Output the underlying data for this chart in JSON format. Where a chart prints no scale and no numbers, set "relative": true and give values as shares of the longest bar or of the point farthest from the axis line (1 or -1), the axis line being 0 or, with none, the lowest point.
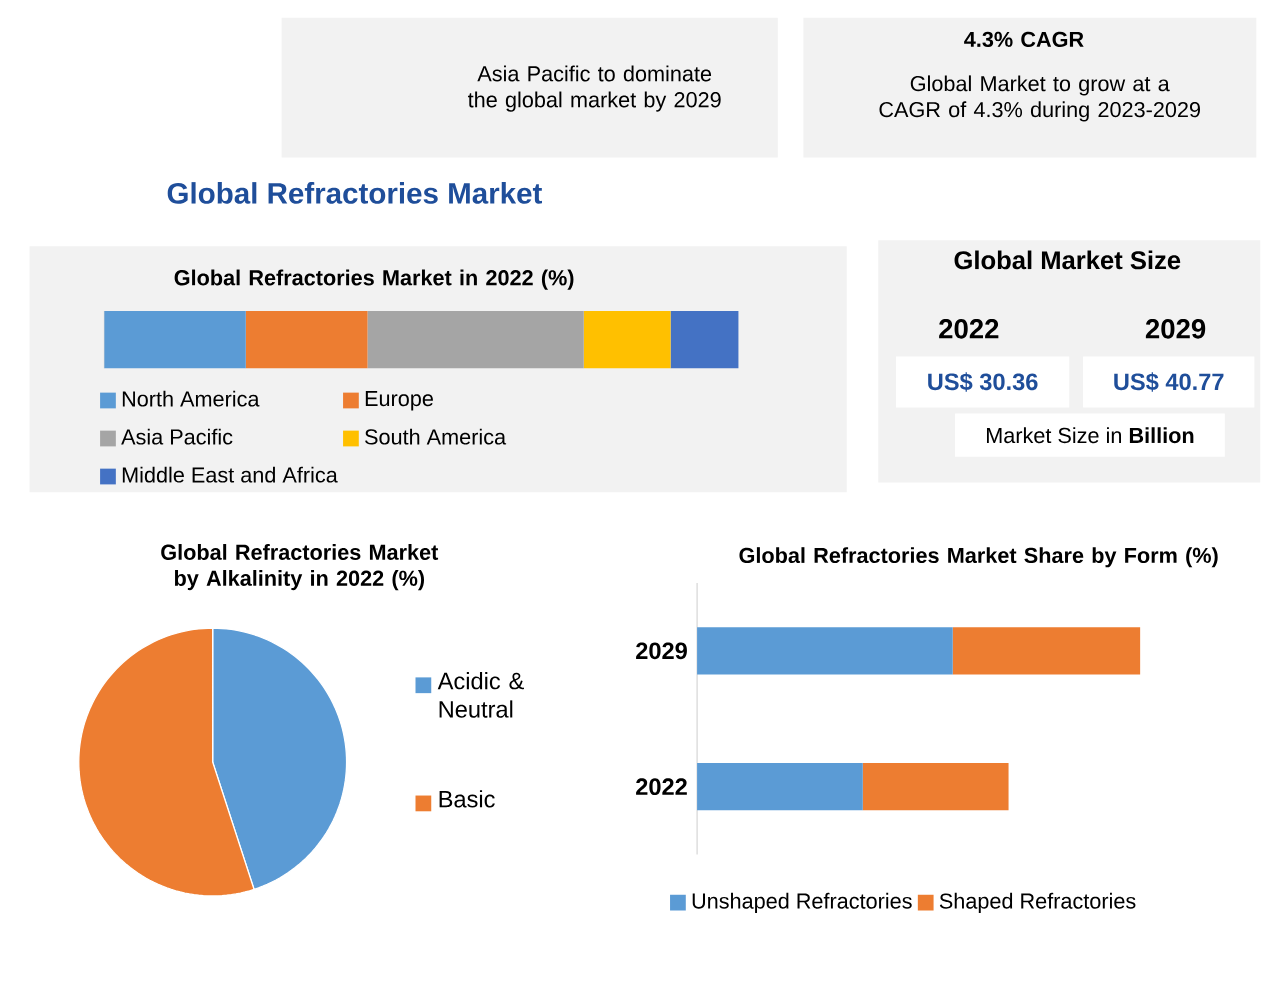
{
  "chart_data": [
    {
      "type": "other",
      "title": "Global Refractories Market",
      "annotations": [
        "Asia Pacific to dominate the global market by 2029",
        "4.3% CAGR",
        "Global Market to grow at a CAGR of 4.3% during 2023-2029"
      ]
    },
    {
      "type": "bar",
      "orientation": "horizontal",
      "stacked": true,
      "relative": true,
      "title": "Global Refractories Market in 2022 (%)",
      "categories": [
        null
      ],
      "legend": "bottom",
      "series": [
        {
          "name": "North America",
          "color": "#5b9bd5",
          "values": [
            0.223
          ]
        },
        {
          "name": "Europe",
          "color": "#ed7d31",
          "values": [
            0.192
          ]
        },
        {
          "name": "Asia Pacific",
          "color": "#a5a5a5",
          "values": [
            0.341
          ]
        },
        {
          "name": "South America",
          "color": "#ffc000",
          "values": [
            0.137
          ]
        },
        {
          "name": "Middle East and Africa",
          "color": "#4472c4",
          "values": [
            0.107
          ]
        }
      ]
    },
    {
      "type": "other",
      "title": "Global Market Size",
      "categories": [
        "2022",
        "2029"
      ],
      "values": [
        30.36,
        40.77
      ],
      "value_labels": [
        "US$ 30.36",
        "US$ 40.77"
      ],
      "annotations": [
        "Market Size in **Billion**"
      ]
    },
    {
      "type": "pie",
      "title": "Global Refractories Market by Alkalinity in 2022 (%)",
      "categories": [
        "Acidic & Neutral",
        "Basic"
      ],
      "values": [
        45,
        55
      ],
      "colors": [
        "#5b9bd5",
        "#ed7d31"
      ],
      "legend": "right"
    },
    {
      "type": "bar",
      "orientation": "horizontal",
      "stacked": true,
      "relative": true,
      "title": "Global Refractories Market Share by Form (%)",
      "categories": [
        "2029",
        "2022"
      ],
      "legend": "bottom",
      "series": [
        {
          "name": "Unshaped Refractories",
          "color": "#5b9bd5",
          "values": [
            0.577,
            0.374
          ]
        },
        {
          "name": "Shaped Refractories",
          "color": "#ed7d31",
          "values": [
            0.423,
            0.329
          ]
        }
      ]
    }
  ]
}
